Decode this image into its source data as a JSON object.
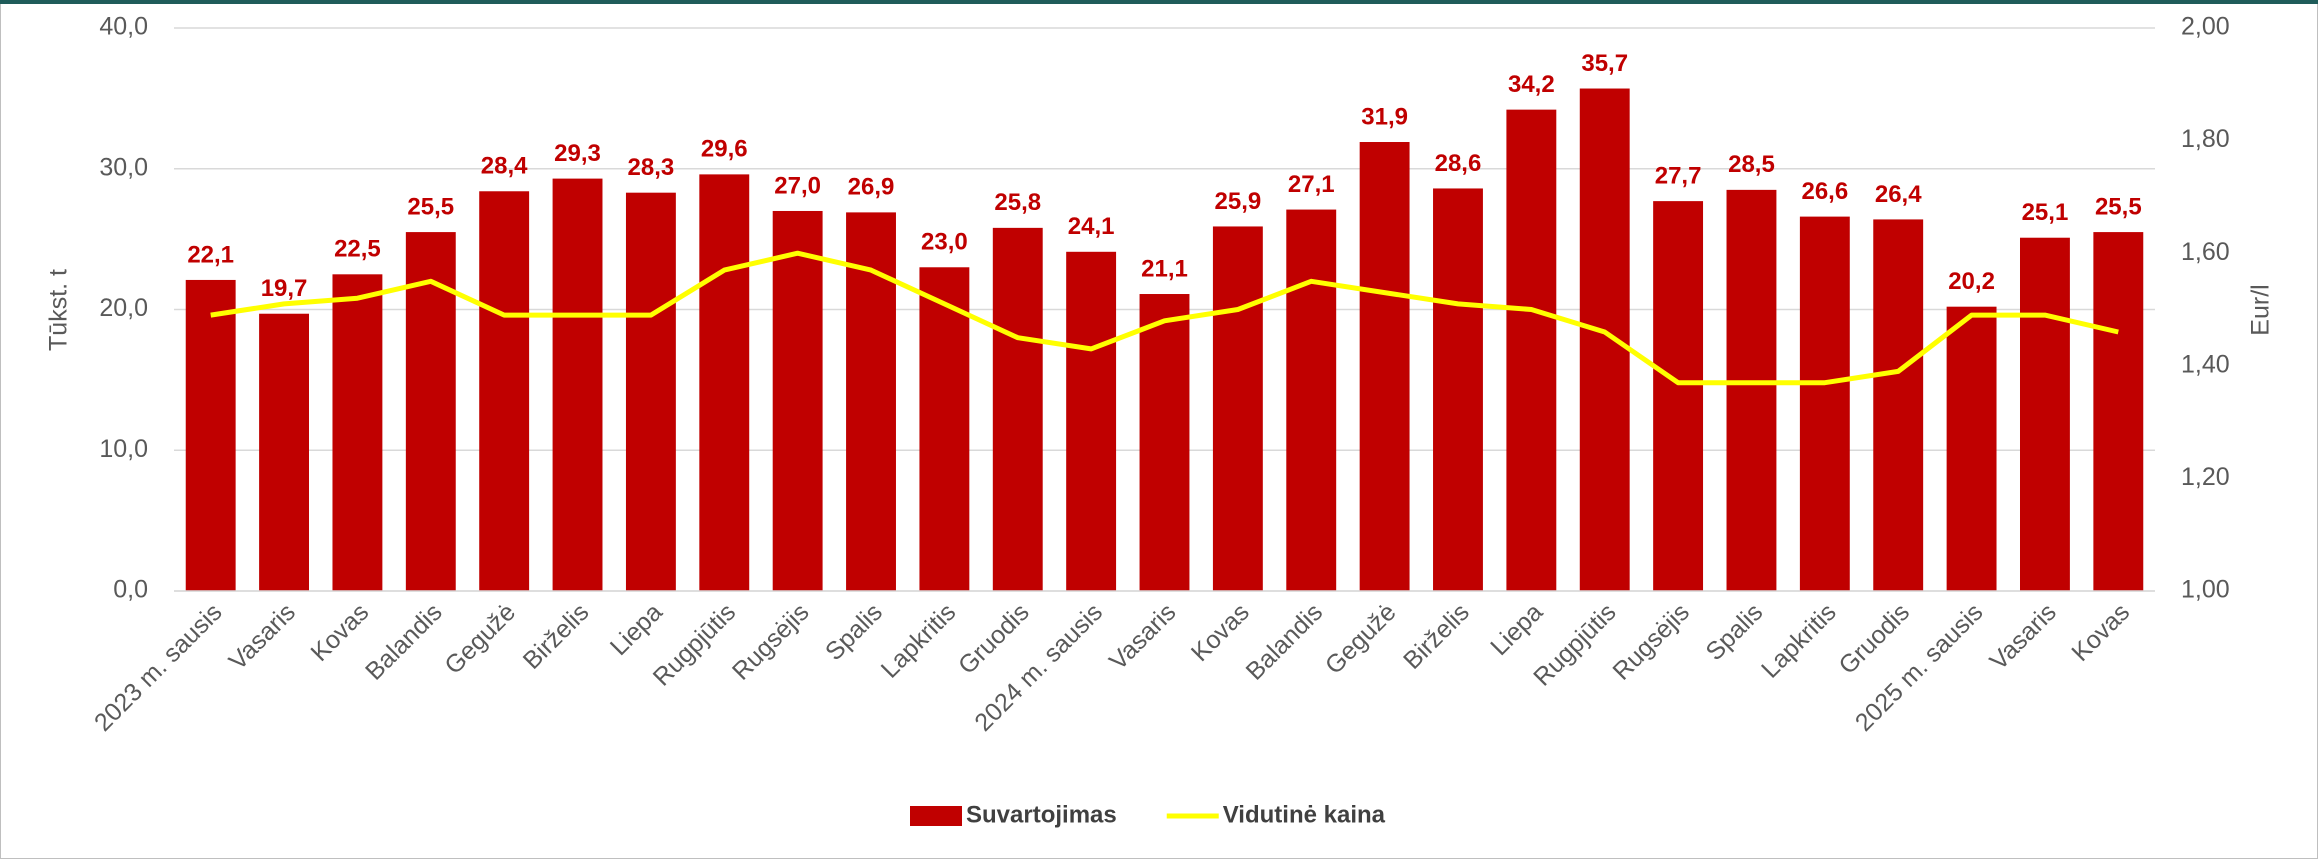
{
  "chart_data": {
    "type": "bar",
    "categories": [
      "2023 m. sausis",
      "Vasaris",
      "Kovas",
      "Balandis",
      "Gegužė",
      "Birželis",
      "Liepa",
      "Rugpjūtis",
      "Rugsėjis",
      "Spalis",
      "Lapkritis",
      "Gruodis",
      "2024 m. sausis",
      "Vasaris",
      "Kovas",
      "Balandis",
      "Gegužė",
      "Birželis",
      "Liepa",
      "Rugpjūtis",
      "Rugsėjis",
      "Spalis",
      "Lapkritis",
      "Gruodis",
      "2025 m. sausis",
      "Vasaris",
      "Kovas"
    ],
    "series": [
      {
        "name": "Suvartojimas",
        "type": "bar",
        "color": "#c00000",
        "values": [
          22.1,
          19.7,
          22.5,
          25.5,
          28.4,
          29.3,
          28.3,
          29.6,
          27.0,
          26.9,
          23.0,
          25.8,
          24.1,
          21.1,
          25.9,
          27.1,
          31.9,
          28.6,
          34.2,
          35.7,
          27.7,
          28.5,
          26.6,
          26.4,
          20.2,
          25.1,
          25.5
        ],
        "value_labels": [
          "22,1",
          "19,7",
          "22,5",
          "25,5",
          "28,4",
          "29,3",
          "28,3",
          "29,6",
          "27,0",
          "26,9",
          "23,0",
          "25,8",
          "24,1",
          "21,1",
          "25,9",
          "27,1",
          "31,9",
          "28,6",
          "34,2",
          "35,7",
          "27,7",
          "28,5",
          "26,6",
          "26,4",
          "20,2",
          "25,1",
          "25,5"
        ]
      },
      {
        "name": "Vidutinė kaina",
        "type": "line",
        "axis": "y2",
        "color": "#ffff00",
        "values": [
          1.49,
          1.51,
          1.52,
          1.55,
          1.49,
          1.49,
          1.49,
          1.57,
          1.6,
          1.57,
          1.51,
          1.45,
          1.43,
          1.48,
          1.5,
          1.55,
          1.53,
          1.51,
          1.5,
          1.46,
          1.37,
          1.37,
          1.37,
          1.39,
          1.49,
          1.49,
          1.46
        ]
      }
    ],
    "ylabel": "Tūkst. t",
    "y2label": "Eur/l",
    "ylim": [
      0,
      40
    ],
    "yticks": [
      {
        "value": 0,
        "label": "0,0"
      },
      {
        "value": 10,
        "label": "10,0"
      },
      {
        "value": 20,
        "label": "20,0"
      },
      {
        "value": 30,
        "label": "30,0"
      },
      {
        "value": 40,
        "label": "40,0"
      }
    ],
    "y2lim": [
      1,
      2
    ],
    "y2ticks": [
      {
        "value": 1,
        "label": "1,00"
      },
      {
        "value": 1.2,
        "label": "1,20"
      },
      {
        "value": 1.4,
        "label": "1,40"
      },
      {
        "value": 1.6,
        "label": "1,60"
      },
      {
        "value": 1.8,
        "label": "1,80"
      },
      {
        "value": 2,
        "label": "2,00"
      }
    ],
    "grid": true,
    "legend": "bottom"
  }
}
